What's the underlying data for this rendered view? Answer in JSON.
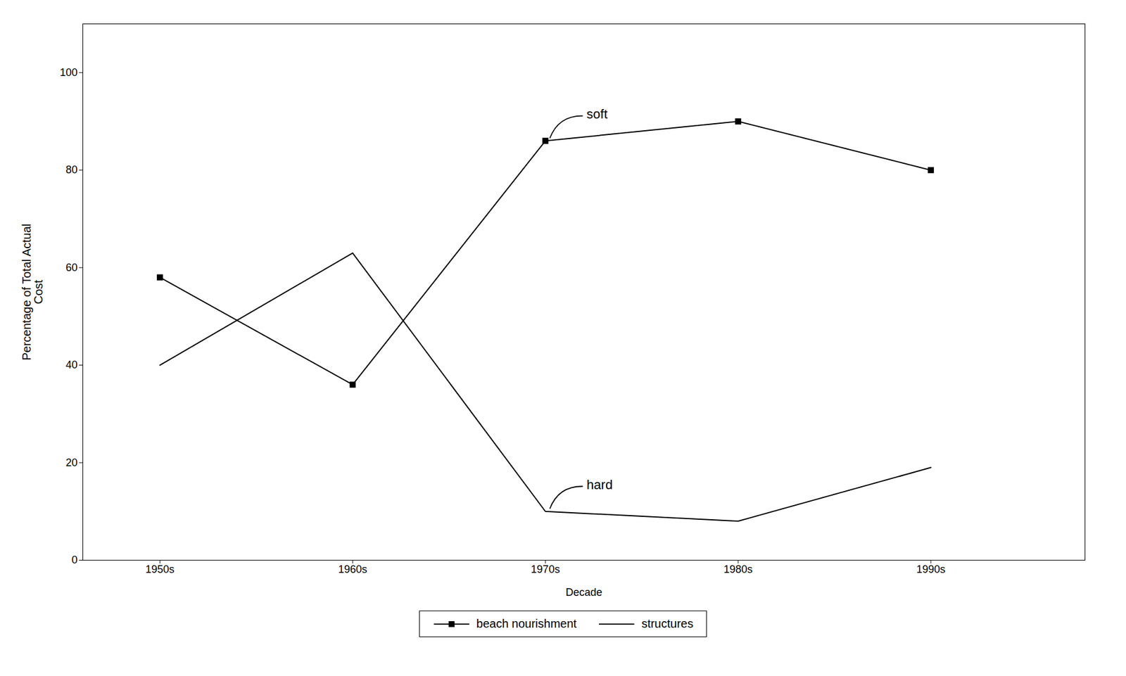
{
  "chart_data": {
    "type": "line",
    "xlabel": "Decade",
    "ylabel": "Percentage of Total Actual\nCost",
    "categories": [
      "1950s",
      "1960s",
      "1970s",
      "1980s",
      "1990s"
    ],
    "series": [
      {
        "name": "beach nourishment",
        "color": "#000000",
        "marker": "square",
        "line_style": "solid",
        "values": [
          58,
          36,
          86,
          90,
          80
        ]
      },
      {
        "name": "structures",
        "color": "#000000",
        "marker": "none",
        "line_style": "solid",
        "values": [
          40,
          63,
          10,
          8,
          19
        ]
      }
    ],
    "ylim": [
      0,
      110
    ],
    "yticks": [
      0,
      20,
      40,
      60,
      80,
      100
    ],
    "grid": false,
    "legend": "bottom",
    "annotations": [
      {
        "text": "soft",
        "series": "beach nourishment",
        "category": "1970s"
      },
      {
        "text": "hard",
        "series": "structures",
        "category": "1970s"
      }
    ]
  }
}
